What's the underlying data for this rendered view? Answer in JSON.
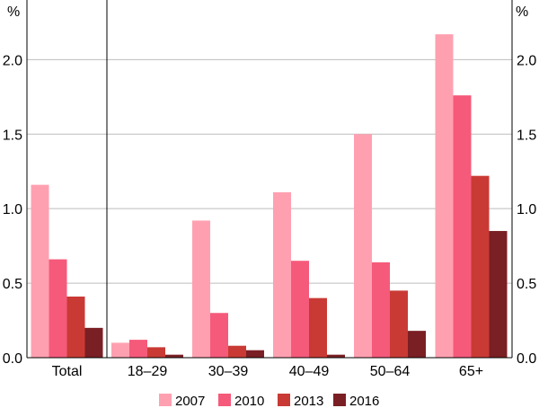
{
  "chart_data": {
    "type": "bar",
    "y_unit_left": "%",
    "y_unit_right": "%",
    "ylim": [
      0,
      2.4
    ],
    "yticks": [
      "0.0",
      "0.5",
      "1.0",
      "1.5",
      "2.0"
    ],
    "ytick_values": [
      0,
      0.5,
      1.0,
      1.5,
      2.0
    ],
    "grid": true,
    "legend_position": "bottom",
    "categories": [
      "Total",
      "18–29",
      "30–39",
      "40–49",
      "50–64",
      "65+"
    ],
    "series": [
      {
        "name": "2007",
        "color": "#ffa0b0",
        "values": [
          1.16,
          0.1,
          0.92,
          1.11,
          1.5,
          2.17
        ]
      },
      {
        "name": "2010",
        "color": "#f55a7a",
        "values": [
          0.66,
          0.12,
          0.3,
          0.65,
          0.64,
          1.76
        ]
      },
      {
        "name": "2013",
        "color": "#c93a35",
        "values": [
          0.41,
          0.07,
          0.08,
          0.4,
          0.45,
          1.22
        ]
      },
      {
        "name": "2016",
        "color": "#7a1f24",
        "values": [
          0.2,
          0.02,
          0.05,
          0.02,
          0.18,
          0.85
        ]
      }
    ]
  }
}
